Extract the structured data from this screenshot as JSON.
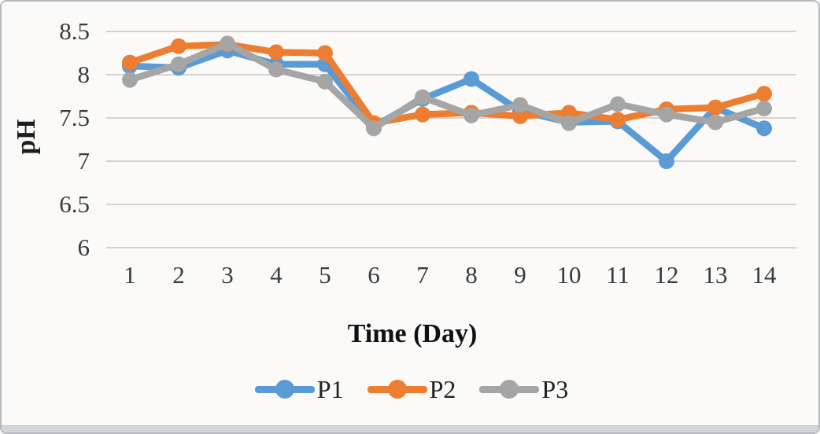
{
  "figure": {
    "background_color": "#fbfaf8",
    "border_color": "#b5b9bd"
  },
  "chart_data": {
    "type": "line",
    "title": "",
    "xlabel": "Time (Day)",
    "ylabel": "pH",
    "x": [
      1,
      2,
      3,
      4,
      5,
      6,
      7,
      8,
      9,
      10,
      11,
      12,
      13,
      14
    ],
    "xtick_labels": [
      "1",
      "2",
      "3",
      "4",
      "5",
      "6",
      "7",
      "8",
      "9",
      "10",
      "11",
      "12",
      "13",
      "14"
    ],
    "series": [
      {
        "name": "P1",
        "color": "#5B9BD5",
        "values": [
          8.1,
          8.08,
          8.28,
          8.12,
          8.12,
          7.4,
          7.72,
          7.95,
          7.58,
          7.45,
          7.46,
          7.0,
          7.62,
          7.38
        ]
      },
      {
        "name": "P2",
        "color": "#ED7D31",
        "values": [
          8.14,
          8.33,
          8.35,
          8.26,
          8.25,
          7.44,
          7.54,
          7.56,
          7.52,
          7.56,
          7.48,
          7.6,
          7.62,
          7.78
        ]
      },
      {
        "name": "P3",
        "color": "#A5A5A5",
        "values": [
          7.94,
          8.12,
          8.36,
          8.06,
          7.92,
          7.38,
          7.74,
          7.53,
          7.65,
          7.44,
          7.66,
          7.54,
          7.45,
          7.61
        ]
      }
    ],
    "ylim": [
      6,
      8.5
    ],
    "yticks": [
      8.5,
      8,
      7.5,
      7,
      6.5,
      6
    ],
    "ytick_labels": [
      "8.5",
      "8",
      "7.5",
      "7",
      "6.5",
      "6"
    ],
    "grid": true,
    "gridline_color": "#bcbcbc",
    "legend_position": "bottom",
    "marker": "circle",
    "line_width": 8.5,
    "marker_radius": 10
  }
}
